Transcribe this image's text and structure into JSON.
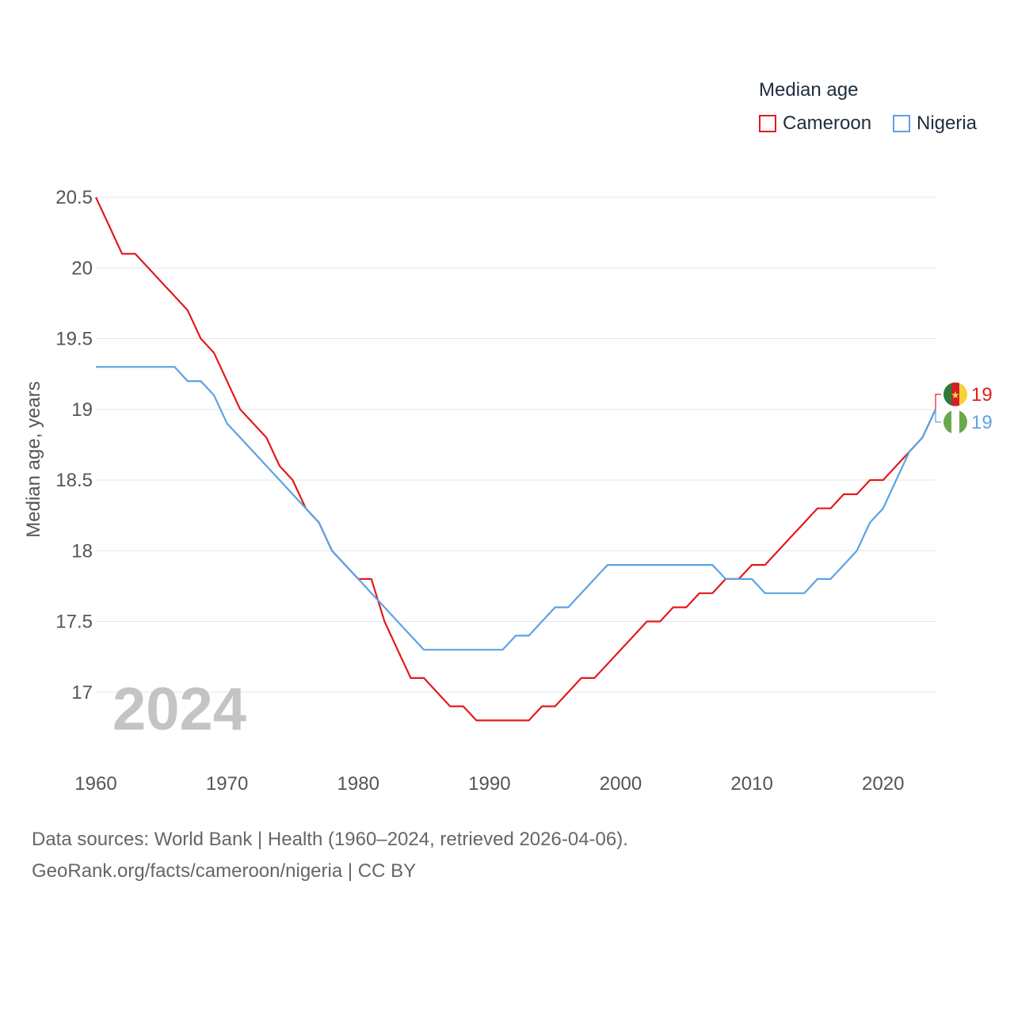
{
  "legend": {
    "title": "Median age",
    "items": [
      {
        "name": "Cameroon",
        "color": "#e31a1c"
      },
      {
        "name": "Nigeria",
        "color": "#5ba3e6"
      }
    ]
  },
  "footer": {
    "line1": "Data sources: World Bank | Health (1960–2024, retrieved 2026-04-06).",
    "line2": "GeoRank.org/facts/cameroon/nigeria | CC BY"
  },
  "chart_data": {
    "type": "line",
    "title": "Median age",
    "xlabel": "",
    "ylabel": "Median age, years",
    "year_label": "2024",
    "xlim": [
      1960,
      2024
    ],
    "ylim": [
      16.5,
      20.5
    ],
    "y_ticks": [
      17,
      17.5,
      18,
      18.5,
      19,
      19.5,
      20,
      20.5
    ],
    "y_tick_labels": [
      "17",
      "17.5",
      "18",
      "18.5",
      "19",
      "19.5",
      "20",
      "20.5"
    ],
    "x_ticks": [
      1960,
      1970,
      1980,
      1990,
      2000,
      2010,
      2020
    ],
    "x_tick_labels": [
      "1960",
      "1970",
      "1980",
      "1990",
      "2000",
      "2010",
      "2020"
    ],
    "grid": true,
    "legend_position": "top-right",
    "x": [
      1960,
      1961,
      1962,
      1963,
      1964,
      1965,
      1966,
      1967,
      1968,
      1969,
      1970,
      1971,
      1972,
      1973,
      1974,
      1975,
      1976,
      1977,
      1978,
      1979,
      1980,
      1981,
      1982,
      1983,
      1984,
      1985,
      1986,
      1987,
      1988,
      1989,
      1990,
      1991,
      1992,
      1993,
      1994,
      1995,
      1996,
      1997,
      1998,
      1999,
      2000,
      2001,
      2002,
      2003,
      2004,
      2005,
      2006,
      2007,
      2008,
      2009,
      2010,
      2011,
      2012,
      2013,
      2014,
      2015,
      2016,
      2017,
      2018,
      2019,
      2020,
      2021,
      2022,
      2023,
      2024
    ],
    "series": [
      {
        "name": "Cameroon",
        "color": "#e31a1c",
        "end_label": "19",
        "values": [
          20.5,
          20.3,
          20.1,
          20.1,
          20.0,
          19.9,
          19.8,
          19.7,
          19.5,
          19.4,
          19.2,
          19.0,
          18.9,
          18.8,
          18.6,
          18.5,
          18.3,
          18.2,
          18.0,
          17.9,
          17.8,
          17.8,
          17.5,
          17.3,
          17.1,
          17.1,
          17.0,
          16.9,
          16.9,
          16.8,
          16.8,
          16.8,
          16.8,
          16.8,
          16.9,
          16.9,
          17.0,
          17.1,
          17.1,
          17.2,
          17.3,
          17.4,
          17.5,
          17.5,
          17.6,
          17.6,
          17.7,
          17.7,
          17.8,
          17.8,
          17.9,
          17.9,
          18.0,
          18.1,
          18.2,
          18.3,
          18.3,
          18.4,
          18.4,
          18.5,
          18.5,
          18.6,
          18.7,
          18.8,
          19.0
        ]
      },
      {
        "name": "Nigeria",
        "color": "#5ba3e6",
        "end_label": "19",
        "values": [
          19.3,
          19.3,
          19.3,
          19.3,
          19.3,
          19.3,
          19.3,
          19.2,
          19.2,
          19.1,
          18.9,
          18.8,
          18.7,
          18.6,
          18.5,
          18.4,
          18.3,
          18.2,
          18.0,
          17.9,
          17.8,
          17.7,
          17.6,
          17.5,
          17.4,
          17.3,
          17.3,
          17.3,
          17.3,
          17.3,
          17.3,
          17.3,
          17.4,
          17.4,
          17.5,
          17.6,
          17.6,
          17.7,
          17.8,
          17.9,
          17.9,
          17.9,
          17.9,
          17.9,
          17.9,
          17.9,
          17.9,
          17.9,
          17.8,
          17.8,
          17.8,
          17.7,
          17.7,
          17.7,
          17.7,
          17.8,
          17.8,
          17.9,
          18.0,
          18.2,
          18.3,
          18.5,
          18.7,
          18.8,
          19.0
        ]
      }
    ]
  }
}
